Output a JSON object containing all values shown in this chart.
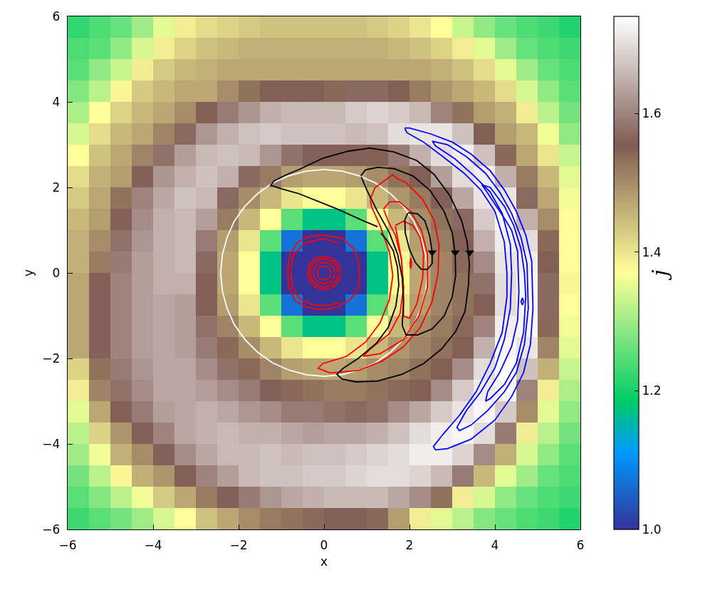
{
  "chart_data": {
    "type": "heatmap",
    "xlabel": "x",
    "ylabel": "y",
    "clabel": "j",
    "xlim": [
      -6,
      6
    ],
    "ylim": [
      -6,
      6
    ],
    "xticks": [
      -6,
      -4,
      -2,
      0,
      2,
      4,
      6
    ],
    "yticks": [
      -6,
      -4,
      -2,
      0,
      2,
      4,
      6
    ],
    "clim": [
      1.0,
      1.74
    ],
    "cticks": [
      {
        "value": 1.0,
        "label": "1.0"
      },
      1.2,
      1.4,
      1.6
    ],
    "cells": [
      [
        1.22,
        1.24,
        1.26,
        1.3,
        1.35,
        1.39,
        1.41,
        1.42,
        1.43,
        1.44,
        1.44,
        1.44,
        1.44,
        1.44,
        1.43,
        1.42,
        1.4,
        1.37,
        1.33,
        1.29,
        1.26,
        1.24,
        1.23,
        1.21
      ],
      [
        1.24,
        1.25,
        1.29,
        1.34,
        1.39,
        1.42,
        1.44,
        1.45,
        1.46,
        1.46,
        1.46,
        1.46,
        1.46,
        1.46,
        1.46,
        1.45,
        1.44,
        1.42,
        1.39,
        1.35,
        1.3,
        1.26,
        1.24,
        1.23
      ],
      [
        1.25,
        1.29,
        1.33,
        1.39,
        1.43,
        1.45,
        1.46,
        1.47,
        1.47,
        1.47,
        1.47,
        1.47,
        1.47,
        1.47,
        1.47,
        1.47,
        1.47,
        1.46,
        1.44,
        1.41,
        1.35,
        1.3,
        1.26,
        1.24
      ],
      [
        1.28,
        1.32,
        1.38,
        1.43,
        1.45,
        1.47,
        1.47,
        1.5,
        1.53,
        1.55,
        1.56,
        1.55,
        1.54,
        1.57,
        1.57,
        1.55,
        1.52,
        1.49,
        1.47,
        1.45,
        1.41,
        1.34,
        1.29,
        1.25
      ],
      [
        1.31,
        1.37,
        1.42,
        1.45,
        1.47,
        1.5,
        1.55,
        1.59,
        1.62,
        1.65,
        1.66,
        1.66,
        1.66,
        1.68,
        1.69,
        1.68,
        1.66,
        1.6,
        1.53,
        1.48,
        1.46,
        1.39,
        1.32,
        1.27
      ],
      [
        1.34,
        1.41,
        1.45,
        1.47,
        1.51,
        1.57,
        1.62,
        1.65,
        1.67,
        1.68,
        1.67,
        1.67,
        1.67,
        1.66,
        1.67,
        1.7,
        1.71,
        1.71,
        1.67,
        1.55,
        1.48,
        1.45,
        1.36,
        1.29
      ],
      [
        1.37,
        1.44,
        1.47,
        1.51,
        1.58,
        1.63,
        1.66,
        1.67,
        1.66,
        1.62,
        1.58,
        1.56,
        1.56,
        1.55,
        1.55,
        1.59,
        1.65,
        1.7,
        1.72,
        1.67,
        1.54,
        1.47,
        1.4,
        1.33
      ],
      [
        1.41,
        1.46,
        1.48,
        1.56,
        1.62,
        1.65,
        1.67,
        1.65,
        1.57,
        1.52,
        1.48,
        1.47,
        1.47,
        1.48,
        1.5,
        1.53,
        1.55,
        1.63,
        1.7,
        1.72,
        1.65,
        1.52,
        1.45,
        1.35
      ],
      [
        1.43,
        1.47,
        1.53,
        1.6,
        1.64,
        1.67,
        1.66,
        1.57,
        1.5,
        1.45,
        1.4,
        1.37,
        1.37,
        1.4,
        1.45,
        1.49,
        1.52,
        1.55,
        1.64,
        1.71,
        1.71,
        1.57,
        1.47,
        1.36
      ],
      [
        1.45,
        1.48,
        1.56,
        1.61,
        1.65,
        1.66,
        1.63,
        1.52,
        1.45,
        1.37,
        1.25,
        1.17,
        1.17,
        1.25,
        1.37,
        1.45,
        1.5,
        1.53,
        1.57,
        1.68,
        1.73,
        1.65,
        1.5,
        1.37
      ],
      [
        1.46,
        1.5,
        1.58,
        1.62,
        1.65,
        1.66,
        1.59,
        1.48,
        1.4,
        1.25,
        1.07,
        1.0,
        1.0,
        1.07,
        1.25,
        1.4,
        1.48,
        1.52,
        1.55,
        1.65,
        1.72,
        1.7,
        1.54,
        1.37
      ],
      [
        1.46,
        1.52,
        1.59,
        1.63,
        1.65,
        1.66,
        1.57,
        1.47,
        1.37,
        1.17,
        1.0,
        1.0,
        1.0,
        1.0,
        1.17,
        1.37,
        1.47,
        1.51,
        1.54,
        1.61,
        1.71,
        1.72,
        1.55,
        1.37
      ],
      [
        1.47,
        1.56,
        1.6,
        1.63,
        1.65,
        1.65,
        1.56,
        1.47,
        1.37,
        1.17,
        1.0,
        1.0,
        1.0,
        1.0,
        1.17,
        1.37,
        1.47,
        1.51,
        1.53,
        1.58,
        1.7,
        1.73,
        1.57,
        1.38
      ],
      [
        1.47,
        1.56,
        1.6,
        1.63,
        1.64,
        1.63,
        1.56,
        1.48,
        1.4,
        1.25,
        1.07,
        1.0,
        1.0,
        1.07,
        1.25,
        1.4,
        1.48,
        1.51,
        1.53,
        1.55,
        1.7,
        1.73,
        1.57,
        1.37
      ],
      [
        1.47,
        1.56,
        1.6,
        1.63,
        1.64,
        1.63,
        1.58,
        1.51,
        1.45,
        1.37,
        1.25,
        1.17,
        1.17,
        1.25,
        1.37,
        1.45,
        1.5,
        1.52,
        1.54,
        1.6,
        1.72,
        1.73,
        1.54,
        1.36
      ],
      [
        1.47,
        1.56,
        1.6,
        1.63,
        1.64,
        1.63,
        1.59,
        1.54,
        1.5,
        1.45,
        1.4,
        1.37,
        1.37,
        1.4,
        1.45,
        1.49,
        1.51,
        1.53,
        1.55,
        1.65,
        1.73,
        1.71,
        1.51,
        1.35
      ],
      [
        1.42,
        1.53,
        1.59,
        1.62,
        1.64,
        1.64,
        1.61,
        1.58,
        1.54,
        1.51,
        1.48,
        1.47,
        1.47,
        1.48,
        1.5,
        1.51,
        1.53,
        1.55,
        1.61,
        1.7,
        1.74,
        1.67,
        1.46,
        1.33
      ],
      [
        1.39,
        1.51,
        1.58,
        1.61,
        1.64,
        1.64,
        1.63,
        1.61,
        1.59,
        1.56,
        1.54,
        1.53,
        1.52,
        1.52,
        1.53,
        1.54,
        1.55,
        1.61,
        1.68,
        1.72,
        1.73,
        1.6,
        1.39,
        1.31
      ],
      [
        1.35,
        1.47,
        1.55,
        1.59,
        1.63,
        1.64,
        1.65,
        1.64,
        1.62,
        1.61,
        1.59,
        1.59,
        1.58,
        1.57,
        1.58,
        1.61,
        1.64,
        1.68,
        1.71,
        1.73,
        1.68,
        1.5,
        1.35,
        1.29
      ],
      [
        1.32,
        1.42,
        1.49,
        1.56,
        1.6,
        1.64,
        1.65,
        1.66,
        1.65,
        1.65,
        1.64,
        1.63,
        1.64,
        1.64,
        1.65,
        1.67,
        1.7,
        1.72,
        1.73,
        1.7,
        1.59,
        1.39,
        1.32,
        1.27
      ],
      [
        1.3,
        1.36,
        1.46,
        1.5,
        1.56,
        1.61,
        1.64,
        1.66,
        1.66,
        1.67,
        1.66,
        1.67,
        1.67,
        1.68,
        1.69,
        1.7,
        1.72,
        1.72,
        1.69,
        1.61,
        1.46,
        1.34,
        1.29,
        1.25
      ],
      [
        1.27,
        1.32,
        1.38,
        1.46,
        1.49,
        1.55,
        1.6,
        1.63,
        1.66,
        1.67,
        1.67,
        1.68,
        1.68,
        1.69,
        1.7,
        1.7,
        1.69,
        1.66,
        1.59,
        1.45,
        1.35,
        1.3,
        1.26,
        1.24
      ],
      [
        1.25,
        1.28,
        1.32,
        1.36,
        1.43,
        1.47,
        1.52,
        1.56,
        1.59,
        1.62,
        1.64,
        1.65,
        1.66,
        1.66,
        1.66,
        1.64,
        1.61,
        1.53,
        1.39,
        1.34,
        1.29,
        1.26,
        1.24,
        1.23
      ],
      [
        1.23,
        1.25,
        1.27,
        1.3,
        1.34,
        1.37,
        1.44,
        1.47,
        1.5,
        1.52,
        1.53,
        1.54,
        1.56,
        1.56,
        1.54,
        1.48,
        1.39,
        1.35,
        1.32,
        1.28,
        1.26,
        1.24,
        1.23,
        1.21
      ]
    ],
    "series": [
      {
        "type": "line",
        "color": "#ffffff",
        "x": [
          2.42,
          2.38,
          2.27,
          2.1,
          1.85,
          1.56,
          1.21,
          0.83,
          0.42,
          0,
          -0.42,
          -0.83,
          -1.21,
          -1.56,
          -1.85,
          -2.1,
          -2.27,
          -2.38,
          -2.42,
          -2.38,
          -2.27,
          -2.1,
          -1.85,
          -1.56,
          -1.21,
          -0.83,
          -0.42,
          0,
          0.42,
          0.83,
          1.21,
          1.56,
          1.85,
          2.1,
          2.27,
          2.38,
          2.42
        ],
        "values": [
          0,
          0.42,
          0.83,
          1.21,
          1.56,
          1.85,
          2.1,
          2.27,
          2.38,
          2.42,
          2.38,
          2.27,
          2.1,
          1.85,
          1.56,
          1.21,
          0.83,
          0.42,
          0,
          -0.42,
          -0.83,
          -1.21,
          -1.56,
          -1.85,
          -2.1,
          -2.27,
          -2.38,
          -2.42,
          -2.38,
          -2.27,
          -2.1,
          -1.85,
          -1.56,
          -1.21,
          -0.83,
          -0.42,
          -0.02
        ]
      },
      {
        "type": "line",
        "color": "#ff0000",
        "x": [
          -0.03,
          0.42,
          0.69,
          0.8,
          0.83,
          0.8,
          0.62,
          0.3,
          -0.03,
          -0.4,
          -0.67,
          -0.83,
          -0.85,
          -0.8,
          -0.62,
          -0.35,
          -0.06
        ],
        "values": [
          0.88,
          0.82,
          0.57,
          0.3,
          -0.05,
          -0.35,
          -0.62,
          -0.8,
          -0.87,
          -0.8,
          -0.66,
          -0.3,
          0.05,
          0.42,
          0.72,
          0.85,
          0.88
        ]
      },
      {
        "type": "line",
        "color": "#ff0000",
        "x": [
          0.35,
          -0.03,
          -0.45,
          -0.72,
          -0.78,
          -0.75,
          -0.58,
          -0.25,
          0.1,
          0.35
        ],
        "values": [
          0.7,
          0.8,
          0.7,
          0.42,
          0.05,
          -0.3,
          -0.6,
          -0.75,
          -0.76,
          -0.7
        ]
      },
      {
        "type": "line",
        "color": "#ff0000",
        "x": [
          0.39,
          0.34,
          0.2,
          0,
          -0.2,
          -0.34,
          -0.39,
          -0.34,
          -0.2,
          0,
          0.2,
          0.34,
          0.39
        ],
        "values": [
          0,
          0.2,
          0.34,
          0.39,
          0.34,
          0.2,
          0,
          -0.2,
          -0.34,
          -0.39,
          -0.34,
          -0.2,
          -0.02
        ]
      },
      {
        "type": "line",
        "color": "#ff0000",
        "x": [
          0.33,
          0.29,
          0.17,
          0,
          -0.17,
          -0.29,
          -0.33,
          -0.29,
          -0.17,
          0,
          0.17,
          0.29,
          0.33
        ],
        "values": [
          0,
          0.17,
          0.29,
          0.33,
          0.29,
          0.17,
          0,
          -0.17,
          -0.29,
          -0.33,
          -0.29,
          -0.17,
          -0.02
        ]
      },
      {
        "type": "line",
        "color": "#ff0000",
        "x": [
          0.25,
          0.22,
          0.13,
          0,
          -0.13,
          -0.22,
          -0.25,
          -0.22,
          -0.13,
          0,
          0.13,
          0.22,
          0.25
        ],
        "values": [
          0,
          0.13,
          0.22,
          0.25,
          0.22,
          0.13,
          0,
          -0.13,
          -0.22,
          -0.25,
          -0.22,
          -0.13,
          -0.02
        ]
      },
      {
        "type": "line",
        "color": "#ff0000",
        "x": [
          0.16,
          0.14,
          0.08,
          0,
          -0.08,
          -0.14,
          -0.16,
          -0.14,
          -0.08,
          0,
          0.08,
          0.14,
          0.16
        ],
        "values": [
          0,
          0.08,
          0.14,
          0.16,
          0.14,
          0.08,
          0,
          -0.08,
          -0.14,
          -0.16,
          -0.14,
          -0.08,
          -0.01
        ]
      },
      {
        "type": "line",
        "color": "#ff0000",
        "x": [
          1.08,
          1.19,
          1.42,
          1.61,
          1.69,
          1.92,
          2.31,
          2.58,
          2.69,
          2.67,
          2.53,
          2.25,
          1.86,
          1.36,
          0.81,
          0.14,
          -0.14,
          -0.03,
          0.53,
          0.97,
          1.31,
          1.53,
          1.61,
          1.53,
          1.31,
          1.11,
          1.08
        ],
        "values": [
          1.72,
          1.99,
          2.16,
          2.3,
          2.22,
          2.11,
          1.72,
          1.22,
          0.66,
          -0.01,
          -0.67,
          -1.28,
          -1.73,
          -2.06,
          -2.28,
          -2.34,
          -2.23,
          -2.12,
          -1.95,
          -1.62,
          -1.17,
          -0.62,
          -0.06,
          0.49,
          1.11,
          1.55,
          1.7
        ]
      },
      {
        "type": "line",
        "color": "#ff0000",
        "x": [
          1.39,
          1.53,
          1.75,
          2.03,
          2.28,
          2.42,
          2.42,
          2.22,
          1.86,
          1.31,
          0.92,
          1.08,
          1.53,
          1.78,
          1.86,
          1.81,
          1.67,
          1.5,
          1.4
        ],
        "values": [
          1.49,
          1.66,
          1.67,
          1.44,
          1.0,
          0.44,
          -0.34,
          -1.01,
          -1.56,
          -1.89,
          -1.95,
          -1.78,
          -1.42,
          -0.95,
          -0.34,
          0.33,
          0.88,
          1.22,
          1.47
        ]
      },
      {
        "type": "line",
        "color": "#ff0000",
        "x": [
          1.67,
          1.86,
          2.08,
          2.25,
          2.33,
          2.31,
          2.17,
          2.0,
          1.86,
          1.86,
          1.81,
          1.72,
          1.67
        ],
        "values": [
          1.11,
          1.21,
          1.11,
          0.83,
          0.44,
          -0.12,
          -0.73,
          -1.06,
          -1.01,
          -0.34,
          0.33,
          0.83,
          1.09
        ]
      },
      {
        "type": "line",
        "color": "#ff0000",
        "x": [
          2.03,
          2.05,
          2.03,
          2.01,
          2.03
        ],
        "values": [
          0.35,
          0.22,
          0.1,
          0.22,
          0.34
        ]
      },
      {
        "type": "line",
        "color": "#0000ff",
        "x": [
          1.89,
          2.0,
          2.5,
          3.0,
          3.44,
          3.89,
          4.22,
          4.5,
          4.72,
          4.86,
          4.89,
          4.83,
          4.67,
          4.39,
          4.0,
          3.44,
          2.89,
          2.61,
          2.56,
          2.78,
          3.17,
          3.56,
          3.89,
          4.17,
          4.28,
          4.28,
          4.22,
          4.0,
          3.67,
          3.28,
          2.78,
          2.33,
          1.94,
          1.89
        ],
        "values": [
          3.39,
          3.39,
          3.25,
          3.06,
          2.78,
          2.39,
          1.94,
          1.44,
          0.89,
          0.28,
          -0.83,
          -1.67,
          -2.33,
          -2.89,
          -3.44,
          -3.89,
          -4.11,
          -4.14,
          -4.06,
          -3.78,
          -3.33,
          -2.78,
          -2.11,
          -1.39,
          -0.56,
          0,
          0.72,
          1.44,
          1.94,
          2.33,
          2.72,
          3.06,
          3.28,
          3.38
        ]
      },
      {
        "type": "line",
        "color": "#0000ff",
        "x": [
          2.53,
          2.89,
          3.33,
          3.78,
          4.11,
          4.39,
          4.61,
          4.75,
          4.78,
          4.69,
          4.5,
          4.22,
          3.83,
          3.44,
          3.17,
          3.11,
          3.33,
          3.67,
          4.0,
          4.22,
          4.36,
          4.39,
          4.36,
          4.17,
          3.89,
          3.5,
          3.06,
          2.61,
          2.54
        ],
        "values": [
          3.08,
          3.0,
          2.72,
          2.33,
          1.89,
          1.39,
          0.83,
          0.22,
          -0.83,
          -1.67,
          -2.33,
          -2.78,
          -3.22,
          -3.56,
          -3.69,
          -3.61,
          -3.22,
          -2.78,
          -2.22,
          -1.56,
          -0.83,
          0,
          0.67,
          1.39,
          1.89,
          2.28,
          2.67,
          2.97,
          3.07
        ]
      },
      {
        "type": "line",
        "color": "#0000ff",
        "x": [
          3.69,
          3.89,
          4.22,
          4.44,
          4.61,
          4.69,
          4.72,
          4.67,
          4.5,
          4.22,
          3.89,
          3.78,
          3.83,
          4.11,
          4.39,
          4.53,
          4.56,
          4.53,
          4.39,
          4.22,
          4.0,
          3.78,
          3.7
        ],
        "values": [
          2.06,
          2.0,
          1.56,
          1.11,
          0.56,
          0,
          -0.56,
          -1.39,
          -2.11,
          -2.61,
          -2.94,
          -3.0,
          -2.78,
          -2.33,
          -1.72,
          -1.11,
          -0.44,
          0.5,
          1.0,
          1.28,
          1.61,
          1.94,
          2.05
        ]
      },
      {
        "type": "line",
        "color": "#0000ff",
        "x": [
          4.64,
          4.67,
          4.64,
          4.61,
          4.64
        ],
        "values": [
          -0.58,
          -0.67,
          -0.75,
          -0.67,
          -0.59
        ]
      },
      {
        "type": "line",
        "color": "#000000",
        "x": [
          1.25,
          0.92,
          0.25,
          -0.58,
          -1.0,
          -1.25,
          -1.17,
          -0.92,
          -0.58,
          -0.03,
          0.58,
          1.08,
          1.63,
          2.17,
          2.58,
          2.95,
          3.22,
          3.35,
          3.4,
          3.38,
          3.3,
          3.08,
          2.75,
          2.33,
          1.83,
          1.25,
          0.75,
          0.42,
          0.3,
          0.45,
          0.8,
          1.22,
          1.5,
          1.68,
          1.75,
          1.72,
          1.62,
          1.47,
          1.33
        ],
        "values": [
          1.08,
          1.22,
          1.52,
          1.85,
          1.97,
          2.05,
          2.15,
          2.28,
          2.42,
          2.68,
          2.85,
          2.92,
          2.83,
          2.63,
          2.3,
          1.8,
          1.22,
          0.72,
          0.22,
          -0.28,
          -0.9,
          -1.37,
          -1.78,
          -2.12,
          -2.37,
          -2.53,
          -2.55,
          -2.48,
          -2.37,
          -2.23,
          -2.0,
          -1.65,
          -1.28,
          -0.78,
          -0.28,
          0.13,
          0.52,
          0.77,
          0.93
        ]
      },
      {
        "type": "line",
        "color": "#000000",
        "x": [
          0.86,
          0.97,
          1.25,
          1.64,
          2.08,
          2.47,
          2.81,
          3.0,
          3.07,
          3.08,
          3.0,
          2.81,
          2.53,
          2.19,
          1.92,
          1.83,
          1.86,
          1.83,
          1.72,
          1.53,
          1.25,
          1.0,
          0.87
        ],
        "values": [
          2.27,
          2.41,
          2.47,
          2.44,
          2.27,
          1.94,
          1.44,
          0.94,
          0.44,
          -0.06,
          -0.56,
          -1.01,
          -1.31,
          -1.45,
          -1.45,
          -1.23,
          -0.67,
          -0.12,
          0.44,
          0.94,
          1.44,
          1.94,
          2.25
        ]
      },
      {
        "type": "line",
        "color": "#000000",
        "x": [
          1.97,
          2.19,
          2.36,
          2.47,
          2.53,
          2.53,
          2.42,
          2.28,
          2.14,
          2.0,
          1.9,
          1.89,
          1.96
        ],
        "values": [
          1.41,
          1.38,
          1.22,
          0.88,
          0.49,
          0.22,
          0.08,
          0.08,
          0.24,
          0.55,
          0.94,
          1.24,
          1.4
        ]
      },
      {
        "type": "scatter",
        "color": "#000000",
        "marker": "triangle",
        "x": [
          2.53,
          3.07,
          3.41
        ],
        "values": [
          0.48,
          0.48,
          0.48
        ]
      }
    ]
  }
}
